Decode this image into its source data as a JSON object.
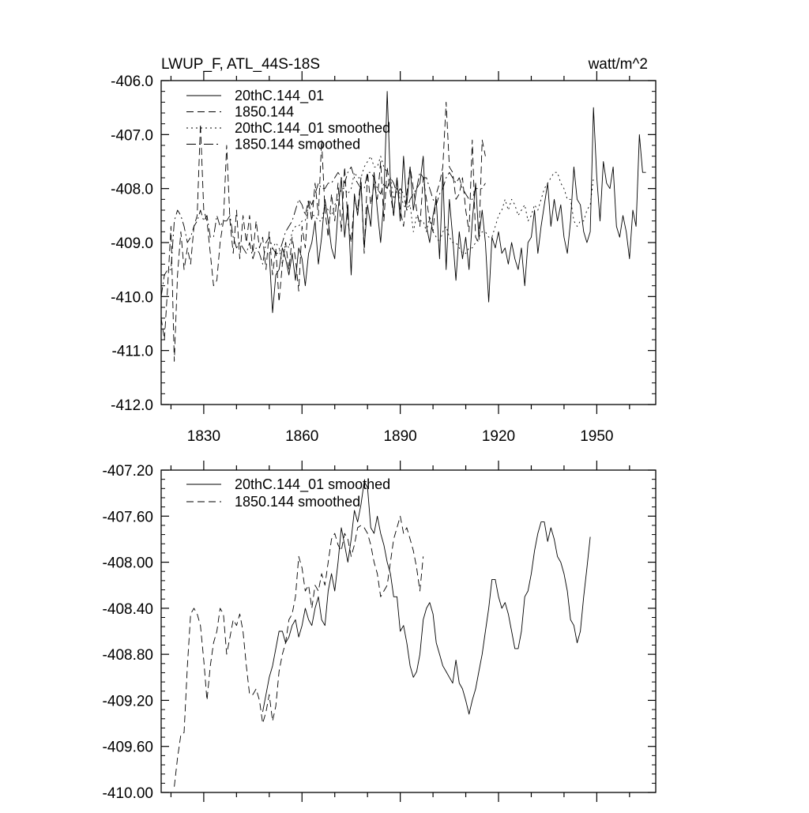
{
  "chart_data": [
    {
      "type": "line",
      "title": "LWUP_F, ATL_44S-18S",
      "units": "watt/m^2",
      "ylim": [
        -412.0,
        -406.0
      ],
      "xlim": [
        1817,
        1968
      ],
      "yticks": [
        "-412.0",
        "-411.0",
        "-410.0",
        "-409.0",
        "-408.0",
        "-407.0",
        "-406.0"
      ],
      "xtick_labels": [
        "1830",
        "1860",
        "1890",
        "1920",
        "1950"
      ],
      "legend_position": "top-left",
      "series": [
        {
          "name": "20thC.144_01",
          "style": "solid",
          "x_start": 1850,
          "values": [
            -409.2,
            -410.3,
            -409.6,
            -409.5,
            -409.1,
            -409.3,
            -409.6,
            -409.2,
            -409.7,
            -409.1,
            -409.3,
            -409.8,
            -409.2,
            -409.0,
            -408.6,
            -409.4,
            -408.9,
            -408.2,
            -408.6,
            -409.1,
            -409.3,
            -408.4,
            -407.8,
            -408.9,
            -408.3,
            -409.6,
            -408.1,
            -408.5,
            -407.9,
            -409.1,
            -408.3,
            -408.7,
            -407.7,
            -408.4,
            -409.0,
            -408.2,
            -406.2,
            -407.9,
            -408.5,
            -407.8,
            -408.6,
            -407.4,
            -408.3,
            -407.6,
            -408.4,
            -408.0,
            -407.9,
            -407.4,
            -408.7,
            -409.0,
            -408.5,
            -408.2,
            -409.3,
            -407.7,
            -409.5,
            -408.2,
            -408.9,
            -409.7,
            -408.8,
            -409.3,
            -408.9,
            -409.5,
            -408.6,
            -407.9,
            -408.9,
            -408.4,
            -409.0,
            -410.1,
            -408.9,
            -409.1,
            -408.8,
            -409.2,
            -409.1,
            -409.4,
            -409.0,
            -409.3,
            -409.5,
            -409.1,
            -409.8,
            -409.0,
            -408.9,
            -408.4,
            -409.2,
            -408.7,
            -408.3,
            -407.9,
            -408.7,
            -408.2,
            -408.6,
            -408.3,
            -408.9,
            -409.2,
            -408.6,
            -407.6,
            -408.2,
            -408.3,
            -408.8,
            -409.0,
            -408.8,
            -406.5,
            -407.8,
            -408.6,
            -407.5,
            -407.9,
            -408.0,
            -407.6,
            -408.7,
            -408.9,
            -408.5,
            -408.8,
            -409.3,
            -408.4,
            -408.7,
            -407.0,
            -407.7,
            -407.7
          ]
        },
        {
          "name": "1850.144",
          "style": "dashed",
          "x_start": 1817,
          "values": [
            -410.4,
            -410.8,
            -409.8,
            -408.7,
            -411.2,
            -409.6,
            -408.8,
            -409.5,
            -409.1,
            -409.4,
            -408.7,
            -408.5,
            -406.8,
            -408.4,
            -408.6,
            -409.2,
            -409.8,
            -409.7,
            -409.0,
            -408.6,
            -407.2,
            -408.6,
            -409.2,
            -408.4,
            -409.3,
            -408.5,
            -409.0,
            -408.5,
            -409.2,
            -408.6,
            -409.1,
            -408.9,
            -409.5,
            -408.8,
            -409.6,
            -409.1,
            -410.1,
            -409.4,
            -409.0,
            -409.5,
            -408.9,
            -409.3,
            -409.9,
            -408.7,
            -409.1,
            -408.2,
            -408.6,
            -407.9,
            -408.5,
            -407.1,
            -408.4,
            -408.9,
            -408.1,
            -408.6,
            -407.9,
            -408.8,
            -407.6,
            -408.6,
            -409.0,
            -408.2,
            -408.4,
            -407.8,
            -409.2,
            -407.7,
            -408.3,
            -407.9,
            -408.2,
            -407.5,
            -408.6,
            -407.6,
            -408.1,
            -408.5,
            -407.8,
            -408.4,
            -408.7,
            -408.1,
            -407.6,
            -408.0,
            -408.4,
            -408.7,
            -407.8,
            -408.2,
            -408.6,
            -408.8,
            -408.1,
            -407.9,
            -407.6,
            -406.4,
            -407.6,
            -407.7,
            -408.2,
            -408.1,
            -407.8,
            -408.4,
            -408.8,
            -407.1,
            -408.9,
            -409.0,
            -407.1,
            -407.4
          ]
        },
        {
          "name": "20thC.144_01 smoothed",
          "style": "dotted",
          "x_start": 1850,
          "values": [
            -409.2,
            -409.1,
            -409.0,
            -409.1,
            -409.4,
            -409.0,
            -409.1,
            -408.8,
            -408.7,
            -408.7,
            -408.6,
            -408.6,
            -408.3,
            -408.5,
            -408.5,
            -408.6,
            -408.6,
            -408.3,
            -408.4,
            -408.5,
            -408.3,
            -408.2,
            -408.0,
            -408.0,
            -408.1,
            -408.0,
            -407.7,
            -407.8,
            -407.8,
            -407.6,
            -407.5,
            -407.4,
            -407.6,
            -407.6,
            -407.4,
            -407.6,
            -407.7,
            -407.8,
            -408.2,
            -408.0,
            -408.1,
            -408.3,
            -408.4,
            -408.3,
            -408.8,
            -408.5,
            -408.6,
            -408.6,
            -408.8,
            -408.5,
            -408.8,
            -408.9,
            -409.0,
            -408.8,
            -408.7,
            -408.9,
            -409.0,
            -409.0,
            -409.1,
            -409.2,
            -409.2,
            -409.1,
            -409.1,
            -409.0,
            -408.9,
            -408.8,
            -408.8,
            -408.9,
            -408.9,
            -408.7,
            -408.5,
            -408.4,
            -408.2,
            -408.4,
            -408.2,
            -408.3,
            -408.5,
            -408.4,
            -408.3,
            -408.6,
            -408.5,
            -408.3,
            -408.4,
            -408.2,
            -408.0,
            -407.9,
            -407.8,
            -407.7,
            -407.7,
            -407.9,
            -408.0,
            -408.2,
            -408.2,
            -408.6,
            -408.7,
            -408.6,
            -408.6,
            -408.4,
            -408.3,
            -407.8
          ]
        },
        {
          "name": "1850.144 smoothed",
          "style": "dash-dot",
          "x_start": 1817,
          "values": [
            -410.0,
            -409.6,
            -409.5,
            -409.5,
            -408.6,
            -408.4,
            -408.5,
            -408.7,
            -409.0,
            -408.9,
            -408.7,
            -408.6,
            -408.4,
            -408.6,
            -408.5,
            -408.9,
            -408.9,
            -408.5,
            -408.7,
            -408.6,
            -408.6,
            -408.5,
            -408.9,
            -409.1,
            -409.0,
            -409.1,
            -409.2,
            -409.0,
            -409.3,
            -409.1,
            -409.2,
            -409.4,
            -409.0,
            -408.9,
            -409.1,
            -409.2,
            -409.2,
            -409.0,
            -408.8,
            -408.7,
            -408.6,
            -408.4,
            -408.2,
            -408.3,
            -408.5,
            -408.2,
            -408.3,
            -408.1,
            -407.9,
            -408.0,
            -408.0,
            -407.9,
            -407.9,
            -407.8,
            -407.7,
            -407.8,
            -407.9,
            -407.7,
            -407.6,
            -407.8,
            -407.9,
            -408.0,
            -408.0,
            -407.7,
            -407.7,
            -407.8,
            -408.0,
            -408.1,
            -407.9,
            -408.0,
            -407.8,
            -407.9,
            -408.1,
            -408.0,
            -408.1,
            -408.4,
            -408.2,
            -408.1,
            -408.0,
            -407.7,
            -407.8,
            -407.8,
            -408.0,
            -408.2,
            -408.3,
            -408.1,
            -408.0,
            -407.8,
            -407.7,
            -407.8,
            -407.9,
            -407.8,
            -408.0,
            -408.1,
            -408.2,
            -408.2,
            -408.0,
            -408.0,
            -408.0,
            -407.9
          ]
        }
      ]
    },
    {
      "type": "line",
      "ylim": [
        -410.0,
        -407.2
      ],
      "xlim": [
        1817,
        1968
      ],
      "yticks": [
        "-410.00",
        "-409.60",
        "-409.20",
        "-408.80",
        "-408.40",
        "-408.00",
        "-407.60",
        "-407.20"
      ],
      "legend_position": "top-left",
      "series": [
        {
          "name": "20thC.144_01 smoothed",
          "style": "solid",
          "x_start": 1848,
          "values": [
            -409.3,
            -409.15,
            -409.0,
            -408.9,
            -408.75,
            -408.6,
            -408.6,
            -408.7,
            -408.65,
            -408.55,
            -408.5,
            -408.65,
            -408.55,
            -408.4,
            -408.5,
            -408.55,
            -408.4,
            -408.3,
            -408.5,
            -408.55,
            -408.25,
            -408.1,
            -408.25,
            -408.0,
            -407.7,
            -407.85,
            -408.0,
            -407.8,
            -407.55,
            -407.65,
            -407.5,
            -407.3,
            -407.35,
            -407.7,
            -407.75,
            -407.6,
            -407.75,
            -407.85,
            -408.0,
            -408.1,
            -408.3,
            -408.3,
            -408.6,
            -408.55,
            -408.7,
            -408.9,
            -409.0,
            -408.95,
            -408.8,
            -408.5,
            -408.4,
            -408.35,
            -408.45,
            -408.7,
            -408.8,
            -408.9,
            -408.95,
            -409.0,
            -409.05,
            -408.85,
            -409.05,
            -409.1,
            -409.2,
            -409.32,
            -409.2,
            -409.1,
            -408.95,
            -408.8,
            -408.6,
            -408.4,
            -408.15,
            -408.15,
            -408.3,
            -408.4,
            -408.35,
            -408.45,
            -408.6,
            -408.75,
            -408.75,
            -408.6,
            -408.3,
            -408.25,
            -408.1,
            -407.9,
            -407.75,
            -407.65,
            -407.65,
            -407.82,
            -407.7,
            -407.8,
            -407.95,
            -408.0,
            -408.1,
            -408.25,
            -408.5,
            -408.55,
            -408.7,
            -408.6,
            -408.3,
            -408.05,
            -407.78
          ]
        },
        {
          "name": "1850.144 smoothed",
          "style": "dashed",
          "x_start": 1821,
          "values": [
            -409.95,
            -409.7,
            -409.5,
            -409.48,
            -408.9,
            -408.45,
            -408.4,
            -408.45,
            -408.55,
            -408.85,
            -409.2,
            -408.9,
            -408.7,
            -408.6,
            -408.4,
            -408.45,
            -408.8,
            -408.65,
            -408.5,
            -408.55,
            -408.45,
            -408.6,
            -408.9,
            -409.15,
            -409.15,
            -409.1,
            -409.2,
            -409.4,
            -409.3,
            -409.15,
            -409.38,
            -409.25,
            -408.95,
            -408.8,
            -408.7,
            -408.5,
            -408.45,
            -408.3,
            -407.95,
            -408.05,
            -408.25,
            -408.2,
            -408.4,
            -408.2,
            -408.25,
            -408.1,
            -408.2,
            -408.0,
            -407.8,
            -407.75,
            -407.85,
            -407.9,
            -407.75,
            -407.8,
            -407.95,
            -407.85,
            -407.7,
            -407.68,
            -407.7,
            -407.75,
            -407.85,
            -408.0,
            -408.1,
            -408.3,
            -408.25,
            -408.2,
            -408.0,
            -407.8,
            -407.7,
            -407.6,
            -407.75,
            -407.7,
            -407.8,
            -407.9,
            -408.05,
            -408.25,
            -407.95
          ]
        }
      ]
    }
  ]
}
